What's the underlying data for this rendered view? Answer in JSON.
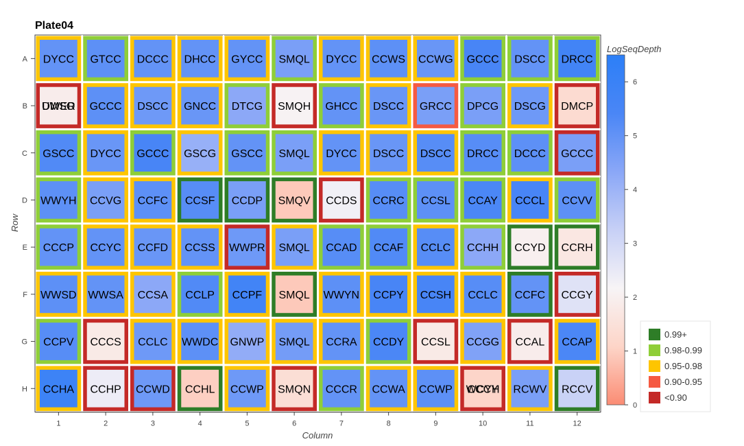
{
  "chart_data": {
    "type": "heatmap",
    "title": "Plate04",
    "xlabel": "Column",
    "ylabel": "Row",
    "rows": [
      "A",
      "B",
      "C",
      "D",
      "E",
      "F",
      "G",
      "H"
    ],
    "columns": [
      "1",
      "2",
      "3",
      "4",
      "5",
      "6",
      "7",
      "8",
      "9",
      "10",
      "11",
      "12"
    ],
    "cells": [
      [
        "DYCC",
        "GTCC",
        "DCCC",
        "DHCC",
        "GYCC",
        "SMQL",
        "DYCC",
        "CCWS",
        "CCWG",
        "GCCC",
        "DSCC",
        "DRCC"
      ],
      [
        "UWER",
        "GCCC",
        "DSCC",
        "GNCC",
        "DTCG",
        "SMQH",
        "GHCC",
        "DSCC",
        "GRCC",
        "DPCG",
        "DSCG",
        "DMCP"
      ],
      [
        "GSCC",
        "DYCC",
        "GCCC",
        "GSCG",
        "GSCC",
        "SMQL",
        "DYCC",
        "DSCC",
        "DSCC",
        "DRCC",
        "DCCC",
        "GCCC"
      ],
      [
        "WWYH",
        "CCVG",
        "CCFC",
        "CCSF",
        "CCDP",
        "SMQV",
        "CCDS",
        "CCRC",
        "CCSL",
        "CCAY",
        "CCCL",
        "CCVV"
      ],
      [
        "CCCP",
        "CCYC",
        "CCFD",
        "CCSS",
        "WWPR",
        "SMQL",
        "CCAD",
        "CCAF",
        "CCLC",
        "CCHH",
        "CCYD",
        "CCRH"
      ],
      [
        "WWSD",
        "WWSA",
        "CCSA",
        "CCLP",
        "CCPF",
        "SMQL",
        "WWYN",
        "CCPY",
        "CCSH",
        "CCLC",
        "CCFC",
        "CCGY"
      ],
      [
        "CCPV",
        "CCCS",
        "CCLC",
        "WWDC",
        "GNWP",
        "SMQL",
        "CCRA",
        "CCDY",
        "CCSL",
        "CCGG",
        "CCAL",
        "CCAP"
      ],
      [
        "CCHA",
        "CCHP",
        "CCWD",
        "CCHL",
        "CCWP",
        "SMQN",
        "CCCR",
        "CCWA",
        "CCWP",
        "CCCY",
        "RCWV",
        "RCCV"
      ]
    ],
    "log_seq_depth": [
      [
        5.0,
        5.1,
        5.0,
        5.0,
        5.0,
        4.6,
        5.0,
        5.1,
        4.9,
        5.5,
        5.0,
        5.7
      ],
      [
        1.9,
        5.1,
        4.8,
        4.9,
        4.3,
        2.1,
        5.0,
        4.9,
        4.6,
        4.6,
        4.8,
        1.3
      ],
      [
        5.3,
        4.9,
        5.5,
        4.1,
        5.0,
        4.6,
        5.0,
        4.9,
        5.2,
        5.2,
        5.1,
        4.6
      ],
      [
        5.1,
        4.6,
        5.1,
        5.2,
        4.6,
        0.9,
        2.3,
        5.2,
        5.1,
        5.4,
        5.5,
        5.1
      ],
      [
        5.0,
        5.0,
        4.9,
        5.0,
        4.8,
        4.6,
        5.2,
        5.3,
        5.2,
        4.3,
        2.0,
        1.7
      ],
      [
        5.1,
        5.0,
        4.3,
        5.3,
        5.7,
        0.9,
        5.1,
        5.5,
        5.5,
        5.2,
        5.0,
        2.7
      ],
      [
        5.2,
        1.8,
        4.8,
        5.1,
        4.2,
        4.7,
        5.0,
        5.4,
        1.8,
        4.5,
        1.9,
        5.4
      ],
      [
        5.9,
        2.4,
        4.8,
        1.0,
        4.8,
        1.4,
        5.0,
        5.0,
        5.1,
        1.1,
        4.6,
        3.2
      ]
    ],
    "quality": [
      [
        "0.95-0.98",
        "0.98-0.99",
        "0.95-0.98",
        "0.95-0.98",
        "0.95-0.98",
        "0.98-0.99",
        "0.95-0.98",
        "0.95-0.98",
        "0.95-0.98",
        "0.98-0.99",
        "0.98-0.99",
        "0.98-0.99"
      ],
      [
        "<0.90",
        "0.95-0.98",
        "0.95-0.98",
        "0.95-0.98",
        "0.98-0.99",
        "<0.90",
        "0.98-0.99",
        "0.95-0.98",
        "0.90-0.95",
        "0.98-0.99",
        "0.95-0.98",
        "<0.90"
      ],
      [
        "0.98-0.99",
        "0.95-0.98",
        "0.98-0.99",
        "0.95-0.98",
        "0.98-0.99",
        "0.98-0.99",
        "0.95-0.98",
        "0.95-0.98",
        "0.95-0.98",
        "0.98-0.99",
        "0.98-0.99",
        "<0.90"
      ],
      [
        "0.98-0.99",
        "0.95-0.98",
        "0.95-0.98",
        "0.99+",
        "0.99+",
        "0.99+",
        "<0.90",
        "0.98-0.99",
        "0.98-0.99",
        "0.98-0.99",
        "0.95-0.98",
        "0.98-0.99"
      ],
      [
        "0.98-0.99",
        "0.95-0.98",
        "0.95-0.98",
        "0.95-0.98",
        "<0.90",
        "0.95-0.98",
        "0.98-0.99",
        "0.98-0.99",
        "0.95-0.98",
        "0.98-0.99",
        "0.99+",
        "0.99+"
      ],
      [
        "0.95-0.98",
        "0.95-0.98",
        "0.95-0.98",
        "0.98-0.99",
        "0.95-0.98",
        "0.99+",
        "0.95-0.98",
        "0.95-0.98",
        "0.95-0.98",
        "0.95-0.98",
        "0.99+",
        "<0.90"
      ],
      [
        "0.98-0.99",
        "<0.90",
        "0.95-0.98",
        "0.95-0.98",
        "0.95-0.98",
        "0.95-0.98",
        "0.95-0.98",
        "0.98-0.99",
        "<0.90",
        "0.95-0.98",
        "<0.90",
        "0.95-0.98"
      ],
      [
        "0.95-0.98",
        "<0.90",
        "<0.90",
        "0.99+",
        "0.95-0.98",
        "<0.90",
        "0.98-0.99",
        "0.95-0.98",
        "0.95-0.98",
        "<0.90",
        "0.95-0.98",
        "0.99+"
      ]
    ],
    "overlay_labels": {
      "B1": "DMSO",
      "H10": "WCYH"
    },
    "colorbar": {
      "title": "LogSeqDepth",
      "range": [
        0,
        6.5
      ],
      "ticks": [
        0,
        1,
        2,
        3,
        4,
        5,
        6
      ],
      "stops": [
        "#fb8c74",
        "#fdd5c8",
        "#f7f4f6",
        "#c7d0f6",
        "#8aa7f7",
        "#4a86f6",
        "#2c7ff7"
      ]
    },
    "legend": {
      "position": "right",
      "entries": [
        {
          "label": "0.99+",
          "color": "#2e7d27"
        },
        {
          "label": "0.98-0.99",
          "color": "#8fce38"
        },
        {
          "label": "0.95-0.98",
          "color": "#fec500"
        },
        {
          "label": "0.90-0.95",
          "color": "#f55a42"
        },
        {
          "label": "<0.90",
          "color": "#c42a27"
        }
      ]
    },
    "grid": false
  }
}
